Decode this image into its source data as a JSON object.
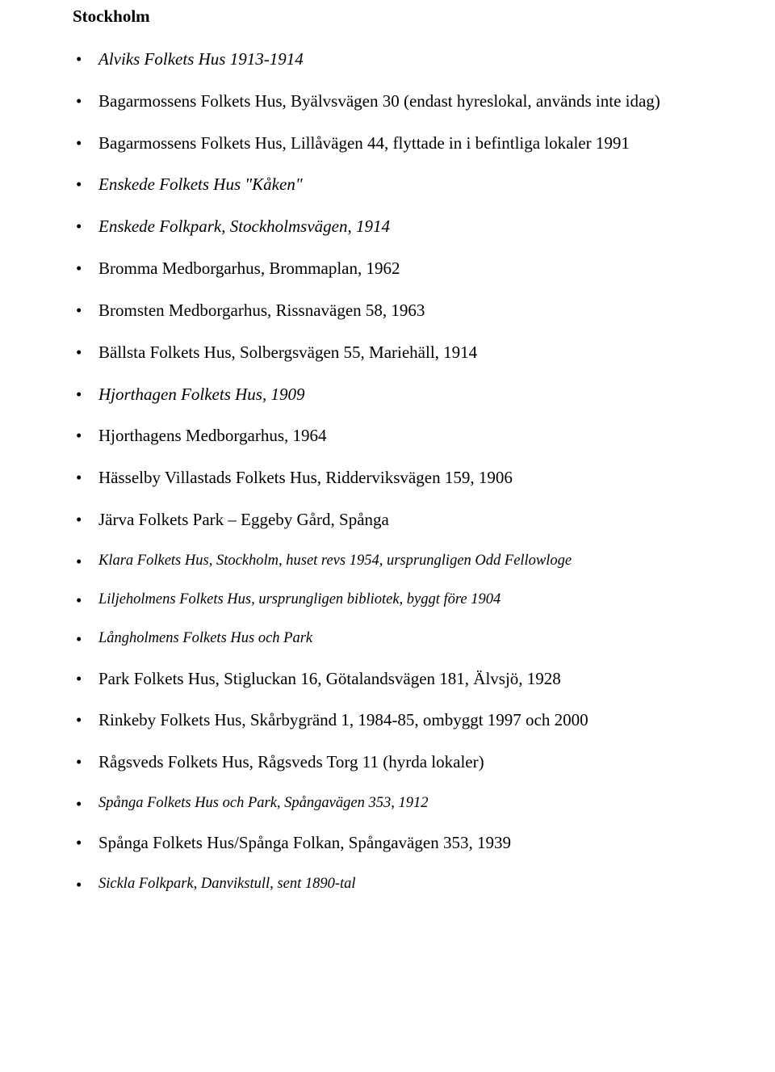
{
  "heading": "Stockholm",
  "items": [
    {
      "text": "Alviks Folkets Hus 1913-1914",
      "italic": true,
      "small": false
    },
    {
      "text": "Bagarmossens Folkets Hus, Byälvsvägen 30 (endast hyreslokal, används inte idag)",
      "italic": false,
      "small": false
    },
    {
      "text": "Bagarmossens Folkets Hus, Lillåvägen 44, flyttade in i befintliga lokaler 1991",
      "italic": false,
      "small": false
    },
    {
      "text": "Enskede Folkets Hus \"Kåken\"",
      "italic": true,
      "small": false
    },
    {
      "text": "Enskede Folkpark, Stockholmsvägen, 1914",
      "italic": true,
      "small": false
    },
    {
      "text": "Bromma Medborgarhus, Brommaplan, 1962",
      "italic": false,
      "small": false
    },
    {
      "text": "Bromsten Medborgarhus, Rissnavägen 58, 1963",
      "italic": false,
      "small": false
    },
    {
      "text": "Bällsta Folkets Hus, Solbergsvägen 55, Mariehäll, 1914",
      "italic": false,
      "small": false
    },
    {
      "text": "Hjorthagen Folkets Hus, 1909",
      "italic": true,
      "small": false
    },
    {
      "text": "Hjorthagens Medborgarhus, 1964",
      "italic": false,
      "small": false
    },
    {
      "text": "Hässelby Villastads Folkets Hus, Ridderviksvägen 159, 1906",
      "italic": false,
      "small": false
    },
    {
      "text": "Järva Folkets Park – Eggeby Gård, Spånga",
      "italic": false,
      "small": false
    },
    {
      "text": "Klara Folkets Hus, Stockholm, huset revs 1954, ursprungligen Odd Fellowloge",
      "italic": true,
      "small": true
    },
    {
      "text": "Liljeholmens Folkets Hus, ursprungligen bibliotek, byggt före 1904",
      "italic": true,
      "small": true
    },
    {
      "text": "Långholmens Folkets Hus och Park",
      "italic": true,
      "small": true
    },
    {
      "text": "Park Folkets Hus, Stigluckan 16, Götalandsvägen 181, Älvsjö, 1928",
      "italic": false,
      "small": false
    },
    {
      "text": "Rinkeby Folkets Hus, Skårbygränd 1, 1984-85, ombyggt 1997 och 2000",
      "italic": false,
      "small": false
    },
    {
      "text": "Rågsveds Folkets Hus, Rågsveds Torg 11 (hyrda lokaler)",
      "italic": false,
      "small": false
    },
    {
      "text": "Spånga Folkets Hus och Park, Spångavägen 353, 1912",
      "italic": true,
      "small": true
    },
    {
      "text": "Spånga Folkets Hus/Spånga Folkan, Spångavägen 353, 1939",
      "italic": false,
      "small": false
    },
    {
      "text": "Sickla Folkpark, Danvikstull, sent 1890-tal",
      "italic": true,
      "small": true
    }
  ]
}
